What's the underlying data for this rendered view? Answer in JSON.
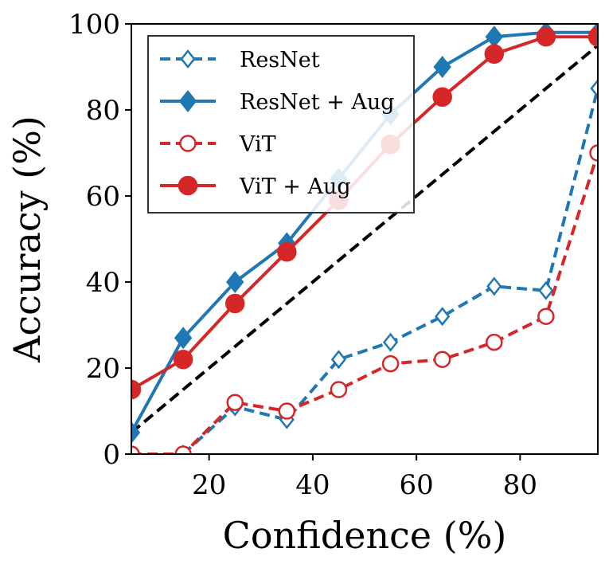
{
  "chart_data": {
    "type": "line",
    "xlabel": "Confidence (%)",
    "ylabel": "Accuracy (%)",
    "xlim": [
      5,
      95
    ],
    "ylim": [
      0,
      100
    ],
    "xticks": [
      20,
      40,
      60,
      80
    ],
    "yticks": [
      0,
      20,
      40,
      60,
      80,
      100
    ],
    "x": [
      5,
      15,
      25,
      35,
      45,
      55,
      65,
      75,
      85,
      95
    ],
    "legend_position": "top-left",
    "reference_line": {
      "x": [
        5,
        95
      ],
      "y": [
        5,
        95
      ],
      "style": "dashed",
      "color": "#000000"
    },
    "series": [
      {
        "name": "ResNet",
        "color": "#1f77b4",
        "dashed": true,
        "marker": "diamond",
        "filled": false,
        "values": [
          null,
          0,
          11,
          8,
          22,
          26,
          32,
          39,
          38,
          85
        ]
      },
      {
        "name": "ResNet + Aug",
        "color": "#1f77b4",
        "dashed": false,
        "marker": "diamond",
        "filled": true,
        "values": [
          5,
          27,
          40,
          49,
          64,
          79,
          90,
          97,
          98,
          98
        ]
      },
      {
        "name": "ViT",
        "color": "#d62728",
        "dashed": true,
        "marker": "circle",
        "filled": false,
        "values": [
          0,
          0,
          12,
          10,
          15,
          21,
          22,
          26,
          32,
          70
        ]
      },
      {
        "name": "ViT + Aug",
        "color": "#d62728",
        "dashed": false,
        "marker": "circle",
        "filled": true,
        "values": [
          15,
          22,
          35,
          47,
          59,
          72,
          83,
          93,
          97,
          97
        ]
      }
    ]
  }
}
